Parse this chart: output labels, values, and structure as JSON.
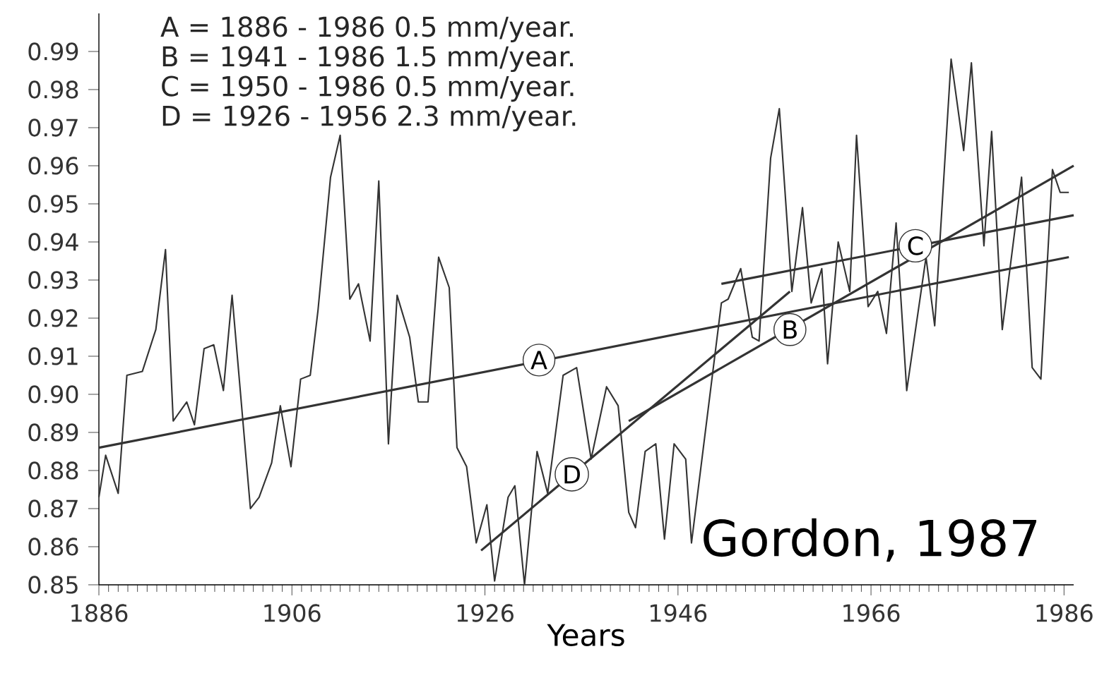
{
  "chart_data": {
    "type": "line",
    "xlabel": "Years",
    "xlim": [
      1886,
      1987
    ],
    "ylim": [
      0.85,
      1.0
    ],
    "xticks": [
      1886,
      1906,
      1926,
      1946,
      1966,
      1986
    ],
    "yticks": [
      0.85,
      0.86,
      0.87,
      0.88,
      0.89,
      {
        "value": 0.9,
        "label": "0.90"
      },
      0.91,
      0.92,
      0.93,
      0.94,
      0.95,
      0.96,
      0.97,
      0.98,
      0.99
    ],
    "series": [
      {
        "color": "#333333",
        "x": [
          1886,
          1886.7,
          1888,
          1888.9,
          1890.5,
          1891.9,
          1892.9,
          1893.7,
          1895.1,
          1895.9,
          1896.9,
          1897.9,
          1898.9,
          1899.8,
          1901.7,
          1902.6,
          1903.9,
          1904.8,
          1905.9,
          1906.9,
          1907.9,
          1908.7,
          1910,
          1911,
          1912,
          1912.9,
          1914.1,
          1915,
          1916,
          1916.9,
          1918.2,
          1919.1,
          1920.1,
          1921.2,
          1922.3,
          1923.1,
          1924.1,
          1925.1,
          1926.2,
          1927,
          1928.4,
          1929.1,
          1930.1,
          1931.4,
          1932.5,
          1934.1,
          1935.5,
          1937,
          1938.6,
          1939.8,
          1940.9,
          1941.6,
          1942.6,
          1943.7,
          1944.6,
          1945.6,
          1946.8,
          1947.4,
          1950.5,
          1951.2,
          1952.5,
          1953.7,
          1954.4,
          1955.6,
          1956.5,
          1957.8,
          1958.9,
          1959.8,
          1960.9,
          1961.5,
          1962.6,
          1963.8,
          1964.5,
          1965.7,
          1966.7,
          1967.6,
          1968.6,
          1969.7,
          1971.7,
          1972.6,
          1974.3,
          1975.6,
          1976.4,
          1977.7,
          1978.5,
          1979.6,
          1981.6,
          1982.7,
          1983.6,
          1984.8,
          1985.6,
          1986.5
        ],
        "values": [
          0.873,
          0.884,
          0.874,
          0.905,
          0.906,
          0.917,
          0.938,
          0.893,
          0.898,
          0.892,
          0.912,
          0.913,
          0.901,
          0.926,
          0.87,
          0.873,
          0.882,
          0.897,
          0.881,
          0.904,
          0.905,
          0.922,
          0.957,
          0.968,
          0.925,
          0.929,
          0.914,
          0.956,
          0.887,
          0.926,
          0.915,
          0.898,
          0.898,
          0.936,
          0.928,
          0.886,
          0.881,
          0.861,
          0.871,
          0.851,
          0.873,
          0.876,
          0.85,
          0.885,
          0.874,
          0.905,
          0.907,
          0.883,
          0.902,
          0.897,
          0.869,
          0.865,
          0.885,
          0.887,
          0.862,
          0.887,
          0.883,
          0.861,
          0.924,
          0.925,
          0.933,
          0.915,
          0.914,
          0.962,
          0.975,
          0.927,
          0.949,
          0.924,
          0.933,
          0.908,
          0.94,
          0.927,
          0.968,
          0.923,
          0.927,
          0.916,
          0.945,
          0.901,
          0.936,
          0.918,
          0.988,
          0.964,
          0.987,
          0.939,
          0.969,
          0.917,
          0.957,
          0.907,
          0.904,
          0.959,
          0.953,
          0.953
        ]
      },
      {
        "type": "line",
        "color": "#333333",
        "x": [
          1886,
          1986.5
        ],
        "values": [
          0.886,
          0.936
        ]
      },
      {
        "type": "line",
        "color": "#333333",
        "x": [
          1940.9,
          1987
        ],
        "values": [
          0.893,
          0.96
        ]
      },
      {
        "type": "line",
        "color": "#333333",
        "x": [
          1950.5,
          1987
        ],
        "values": [
          0.929,
          0.947
        ]
      },
      {
        "type": "line",
        "color": "#333333",
        "x": [
          1925.6,
          1957.6
        ],
        "values": [
          0.859,
          0.927
        ]
      }
    ],
    "annotations": [
      "A  =  1886 - 1986   0.5 mm/year.",
      "B  =  1941 - 1986   1.5 mm/year.",
      "C  =  1950 - 1986   0.5 mm/year.",
      "D  =  1926 - 1956   2.3 mm/year.",
      {
        "text": "A",
        "x": 1931.6,
        "y": 0.909
      },
      {
        "text": "B",
        "x": 1957.6,
        "y": 0.917
      },
      {
        "text": "C",
        "x": 1970.6,
        "y": 0.939
      },
      {
        "text": "D",
        "x": 1935,
        "y": 0.879
      },
      "Gordon, 1987"
    ]
  }
}
